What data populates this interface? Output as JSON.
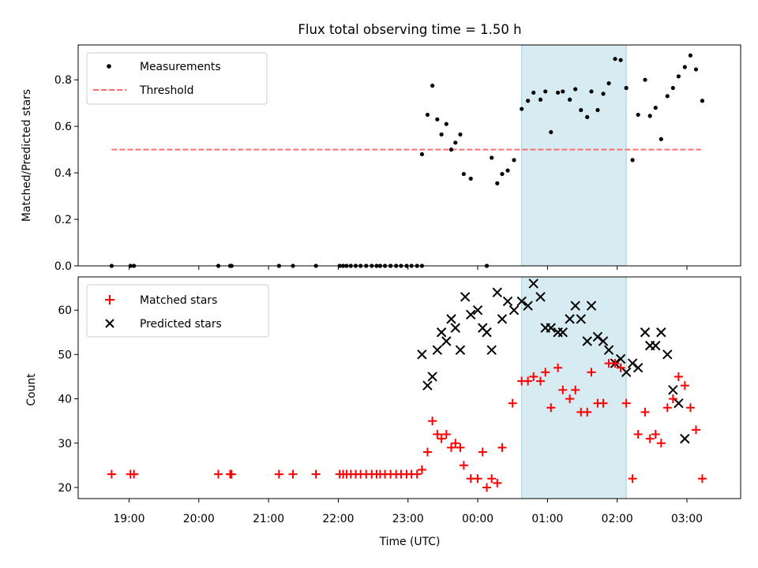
{
  "chart_data": [
    {
      "type": "scatter",
      "title": "Flux total observing time = 1.50 h",
      "xlabel": "",
      "ylabel": "Matched/Predicted stars",
      "ylim": [
        0,
        0.95
      ],
      "yticks": [
        0.0,
        0.2,
        0.4,
        0.6,
        0.8
      ],
      "ytick_labels": [
        "0.0",
        "0.2",
        "0.4",
        "0.6",
        "0.8"
      ],
      "xaxis": "time (hours since 00:00 UTC)",
      "xlim": [
        -5.73,
        3.77
      ],
      "shaded_span": [
        0.63,
        2.13
      ],
      "legend": {
        "placement": "upper-left",
        "entries": [
          "Measurements",
          "Threshold"
        ]
      },
      "threshold": {
        "name": "Threshold",
        "y": 0.5,
        "x_range": [
          -5.25,
          3.2
        ],
        "color": "#ff6f6f",
        "style": "dashed"
      },
      "series": [
        {
          "name": "Measurements",
          "marker": "dot",
          "color": "#000000",
          "points": [
            [
              -5.25,
              0.0
            ],
            [
              -4.98,
              0.0
            ],
            [
              -4.93,
              0.0
            ],
            [
              -3.72,
              0.0
            ],
            [
              -3.55,
              0.0
            ],
            [
              -3.53,
              0.0
            ],
            [
              -2.85,
              0.0
            ],
            [
              -2.65,
              0.0
            ],
            [
              -2.32,
              0.0
            ],
            [
              -1.98,
              0.0
            ],
            [
              -1.93,
              0.0
            ],
            [
              -1.88,
              0.0
            ],
            [
              -1.82,
              0.0
            ],
            [
              -1.75,
              0.0
            ],
            [
              -1.68,
              0.0
            ],
            [
              -1.6,
              0.0
            ],
            [
              -1.52,
              0.0
            ],
            [
              -1.45,
              0.0
            ],
            [
              -1.4,
              0.0
            ],
            [
              -1.33,
              0.0
            ],
            [
              -1.25,
              0.0
            ],
            [
              -1.17,
              0.0
            ],
            [
              -1.1,
              0.0
            ],
            [
              -1.02,
              0.0
            ],
            [
              -0.95,
              0.0
            ],
            [
              -0.87,
              0.0
            ],
            [
              -0.8,
              0.0
            ],
            [
              -0.8,
              0.48
            ],
            [
              -0.72,
              0.65
            ],
            [
              -0.65,
              0.775
            ],
            [
              -0.58,
              0.63
            ],
            [
              -0.52,
              0.565
            ],
            [
              -0.45,
              0.61
            ],
            [
              -0.38,
              0.5
            ],
            [
              -0.32,
              0.53
            ],
            [
              -0.25,
              0.565
            ],
            [
              -0.2,
              0.395
            ],
            [
              -0.1,
              0.375
            ],
            [
              0.13,
              0.0
            ],
            [
              0.2,
              0.465
            ],
            [
              0.28,
              0.355
            ],
            [
              0.35,
              0.395
            ],
            [
              0.43,
              0.41
            ],
            [
              0.52,
              0.455
            ],
            [
              0.63,
              0.675
            ],
            [
              0.72,
              0.71
            ],
            [
              0.8,
              0.745
            ],
            [
              0.9,
              0.715
            ],
            [
              0.97,
              0.75
            ],
            [
              1.05,
              0.575
            ],
            [
              1.15,
              0.745
            ],
            [
              1.22,
              0.75
            ],
            [
              1.32,
              0.715
            ],
            [
              1.4,
              0.76
            ],
            [
              1.48,
              0.67
            ],
            [
              1.57,
              0.64
            ],
            [
              1.63,
              0.75
            ],
            [
              1.72,
              0.67
            ],
            [
              1.8,
              0.74
            ],
            [
              1.88,
              0.785
            ],
            [
              1.97,
              0.89
            ],
            [
              2.05,
              0.885
            ],
            [
              2.13,
              0.765
            ],
            [
              2.22,
              0.455
            ],
            [
              2.3,
              0.65
            ],
            [
              2.4,
              0.8
            ],
            [
              2.47,
              0.645
            ],
            [
              2.55,
              0.68
            ],
            [
              2.63,
              0.545
            ],
            [
              2.72,
              0.73
            ],
            [
              2.8,
              0.765
            ],
            [
              2.88,
              0.815
            ],
            [
              2.97,
              0.855
            ],
            [
              3.05,
              0.905
            ],
            [
              3.13,
              0.845
            ],
            [
              3.22,
              0.71
            ]
          ]
        }
      ]
    },
    {
      "type": "scatter",
      "title": "",
      "xlabel": "Time (UTC)",
      "ylabel": "Count",
      "ylim": [
        17.5,
        67.5
      ],
      "yticks": [
        20,
        30,
        40,
        50,
        60
      ],
      "ytick_labels": [
        "20",
        "30",
        "40",
        "50",
        "60"
      ],
      "xaxis": "time (hours since 00:00 UTC)",
      "xlim": [
        -5.73,
        3.77
      ],
      "xticks": [
        -5,
        -4,
        -3,
        -2,
        -1,
        0,
        1,
        2,
        3
      ],
      "xtick_labels": [
        "19:00",
        "20:00",
        "21:00",
        "22:00",
        "23:00",
        "00:00",
        "01:00",
        "02:00",
        "03:00"
      ],
      "shaded_span": [
        0.63,
        2.13
      ],
      "legend": {
        "placement": "upper-left",
        "entries": [
          "Matched stars",
          "Predicted stars"
        ]
      },
      "series": [
        {
          "name": "Matched stars",
          "marker": "plus",
          "color": "#ff0000",
          "points": [
            [
              -5.25,
              23
            ],
            [
              -4.98,
              23
            ],
            [
              -4.93,
              23
            ],
            [
              -3.72,
              23
            ],
            [
              -3.55,
              23
            ],
            [
              -3.53,
              23
            ],
            [
              -2.85,
              23
            ],
            [
              -2.65,
              23
            ],
            [
              -2.32,
              23
            ],
            [
              -1.98,
              23
            ],
            [
              -1.93,
              23
            ],
            [
              -1.88,
              23
            ],
            [
              -1.82,
              23
            ],
            [
              -1.75,
              23
            ],
            [
              -1.68,
              23
            ],
            [
              -1.6,
              23
            ],
            [
              -1.52,
              23
            ],
            [
              -1.45,
              23
            ],
            [
              -1.4,
              23
            ],
            [
              -1.33,
              23
            ],
            [
              -1.25,
              23
            ],
            [
              -1.17,
              23
            ],
            [
              -1.1,
              23
            ],
            [
              -1.02,
              23
            ],
            [
              -0.95,
              23
            ],
            [
              -0.87,
              23
            ],
            [
              -0.8,
              24
            ],
            [
              -0.72,
              28
            ],
            [
              -0.65,
              35
            ],
            [
              -0.58,
              32
            ],
            [
              -0.52,
              31
            ],
            [
              -0.45,
              32
            ],
            [
              -0.38,
              29
            ],
            [
              -0.32,
              30
            ],
            [
              -0.25,
              29
            ],
            [
              -0.2,
              25
            ],
            [
              -0.1,
              22
            ],
            [
              0.0,
              22
            ],
            [
              0.07,
              28
            ],
            [
              0.13,
              20
            ],
            [
              0.2,
              22
            ],
            [
              0.28,
              21
            ],
            [
              0.35,
              29
            ],
            [
              0.5,
              39
            ],
            [
              0.63,
              44
            ],
            [
              0.72,
              44
            ],
            [
              0.8,
              45
            ],
            [
              0.9,
              44
            ],
            [
              0.97,
              46
            ],
            [
              1.05,
              38
            ],
            [
              1.15,
              47
            ],
            [
              1.22,
              42
            ],
            [
              1.32,
              40
            ],
            [
              1.4,
              42
            ],
            [
              1.48,
              37
            ],
            [
              1.57,
              37
            ],
            [
              1.63,
              46
            ],
            [
              1.72,
              39
            ],
            [
              1.8,
              39
            ],
            [
              1.88,
              48
            ],
            [
              1.97,
              48
            ],
            [
              2.05,
              47
            ],
            [
              2.13,
              39
            ],
            [
              2.22,
              22
            ],
            [
              2.3,
              32
            ],
            [
              2.4,
              37
            ],
            [
              2.47,
              31
            ],
            [
              2.55,
              32
            ],
            [
              2.63,
              30
            ],
            [
              2.72,
              38
            ],
            [
              2.8,
              40
            ],
            [
              2.88,
              45
            ],
            [
              2.97,
              43
            ],
            [
              3.05,
              38
            ],
            [
              3.13,
              33
            ],
            [
              3.22,
              22
            ]
          ]
        },
        {
          "name": "Predicted stars",
          "marker": "x",
          "color": "#000000",
          "points": [
            [
              -0.8,
              50
            ],
            [
              -0.72,
              43
            ],
            [
              -0.65,
              45
            ],
            [
              -0.58,
              51
            ],
            [
              -0.52,
              55
            ],
            [
              -0.45,
              53
            ],
            [
              -0.38,
              58
            ],
            [
              -0.32,
              56
            ],
            [
              -0.25,
              51
            ],
            [
              -0.18,
              63
            ],
            [
              -0.1,
              59
            ],
            [
              0.0,
              60
            ],
            [
              0.07,
              56
            ],
            [
              0.13,
              55
            ],
            [
              0.2,
              51
            ],
            [
              0.28,
              64
            ],
            [
              0.35,
              58
            ],
            [
              0.43,
              62
            ],
            [
              0.52,
              60
            ],
            [
              0.63,
              62
            ],
            [
              0.72,
              61
            ],
            [
              0.8,
              66
            ],
            [
              0.9,
              63
            ],
            [
              0.97,
              56
            ],
            [
              1.05,
              56
            ],
            [
              1.15,
              55
            ],
            [
              1.22,
              55
            ],
            [
              1.32,
              58
            ],
            [
              1.4,
              61
            ],
            [
              1.48,
              58
            ],
            [
              1.57,
              53
            ],
            [
              1.63,
              61
            ],
            [
              1.72,
              54
            ],
            [
              1.8,
              53
            ],
            [
              1.88,
              51
            ],
            [
              1.97,
              48
            ],
            [
              2.05,
              49
            ],
            [
              2.13,
              46
            ],
            [
              2.22,
              48
            ],
            [
              2.3,
              47
            ],
            [
              2.4,
              55
            ],
            [
              2.47,
              52
            ],
            [
              2.55,
              52
            ],
            [
              2.63,
              55
            ],
            [
              2.72,
              50
            ],
            [
              2.8,
              42
            ],
            [
              2.88,
              39
            ],
            [
              2.97,
              31
            ]
          ]
        }
      ]
    }
  ]
}
